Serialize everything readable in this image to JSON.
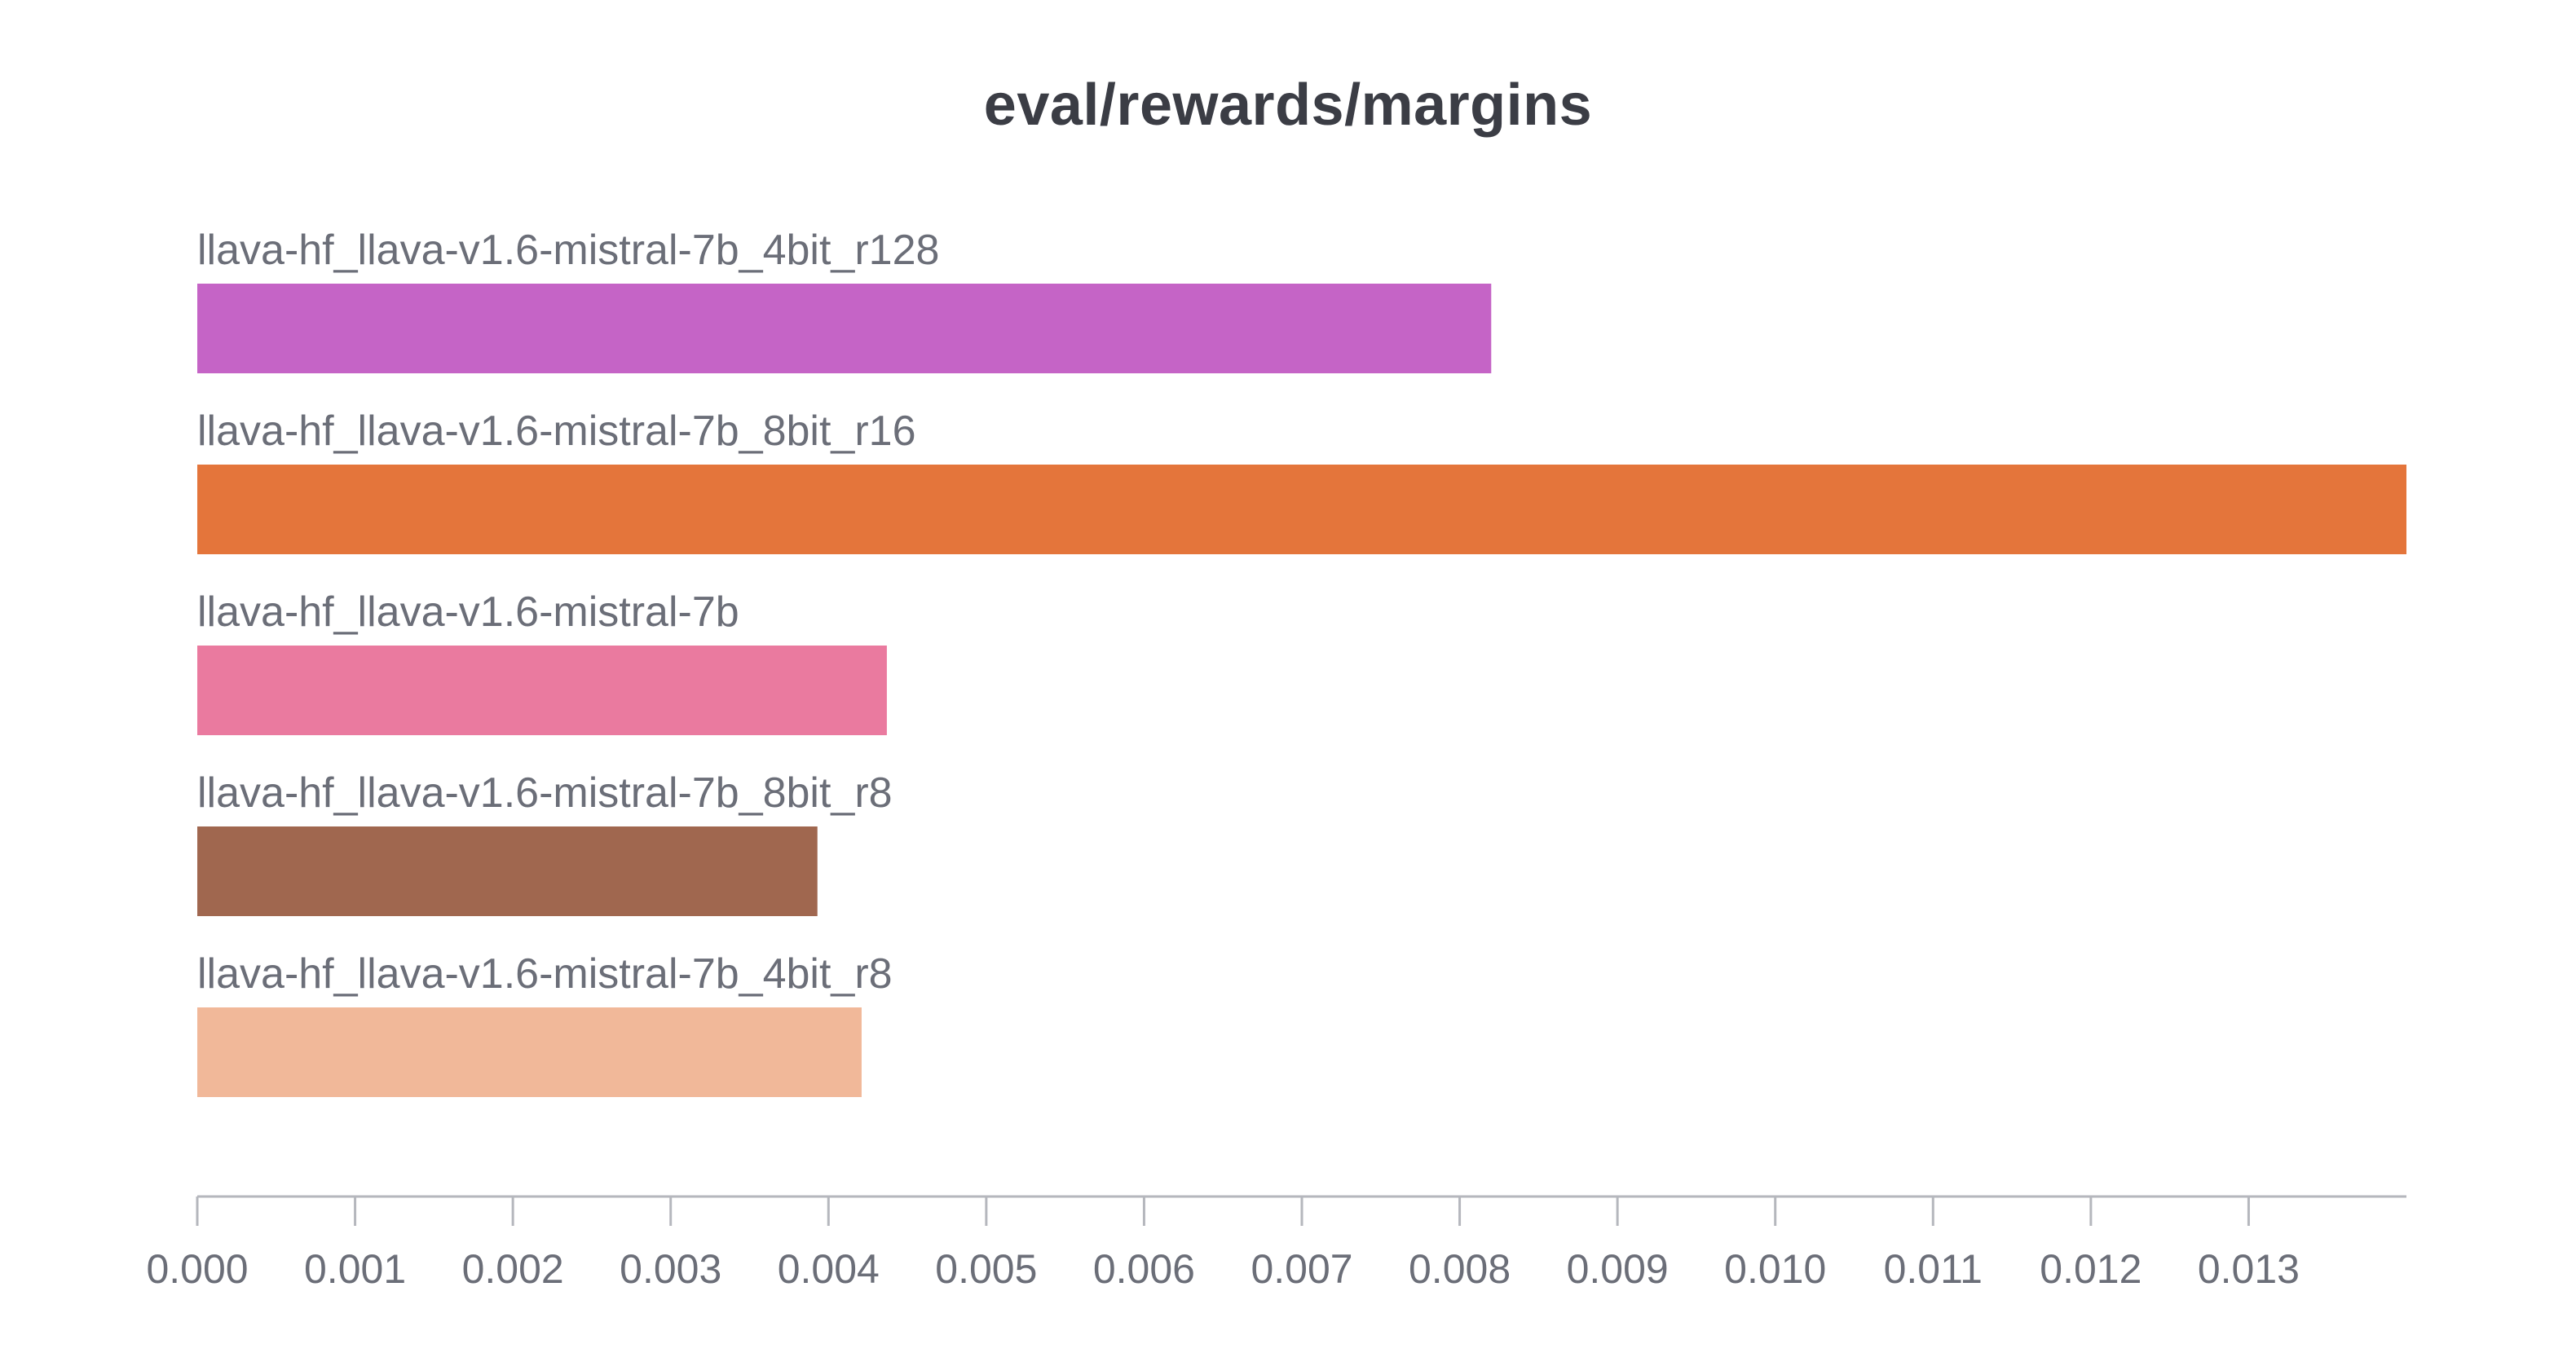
{
  "chart_data": {
    "type": "bar",
    "orientation": "horizontal",
    "title": "eval/rewards/margins",
    "xlabel": "",
    "ylabel": "",
    "xlim": [
      0,
      0.014
    ],
    "grid": false,
    "legend": "none",
    "categories": [
      "llava-hf_llava-v1.6-mistral-7b_4bit_r128",
      "llava-hf_llava-v1.6-mistral-7b_8bit_r16",
      "llava-hf_llava-v1.6-mistral-7b",
      "llava-hf_llava-v1.6-mistral-7b_8bit_r8",
      "llava-hf_llava-v1.6-mistral-7b_4bit_r8"
    ],
    "values": [
      0.0082,
      0.014,
      0.00437,
      0.00393,
      0.00421
    ],
    "colors": [
      "#c564c6",
      "#e4753b",
      "#ea7a9f",
      "#a0674f",
      "#f1b899"
    ],
    "xticks": [
      0,
      0.001,
      0.002,
      0.003,
      0.004,
      0.005,
      0.006,
      0.007,
      0.008,
      0.009,
      0.01,
      0.011,
      0.012,
      0.013
    ],
    "xtick_labels": [
      "0.000",
      "0.001",
      "0.002",
      "0.003",
      "0.004",
      "0.005",
      "0.006",
      "0.007",
      "0.008",
      "0.009",
      "0.010",
      "0.011",
      "0.012",
      "0.013"
    ]
  }
}
